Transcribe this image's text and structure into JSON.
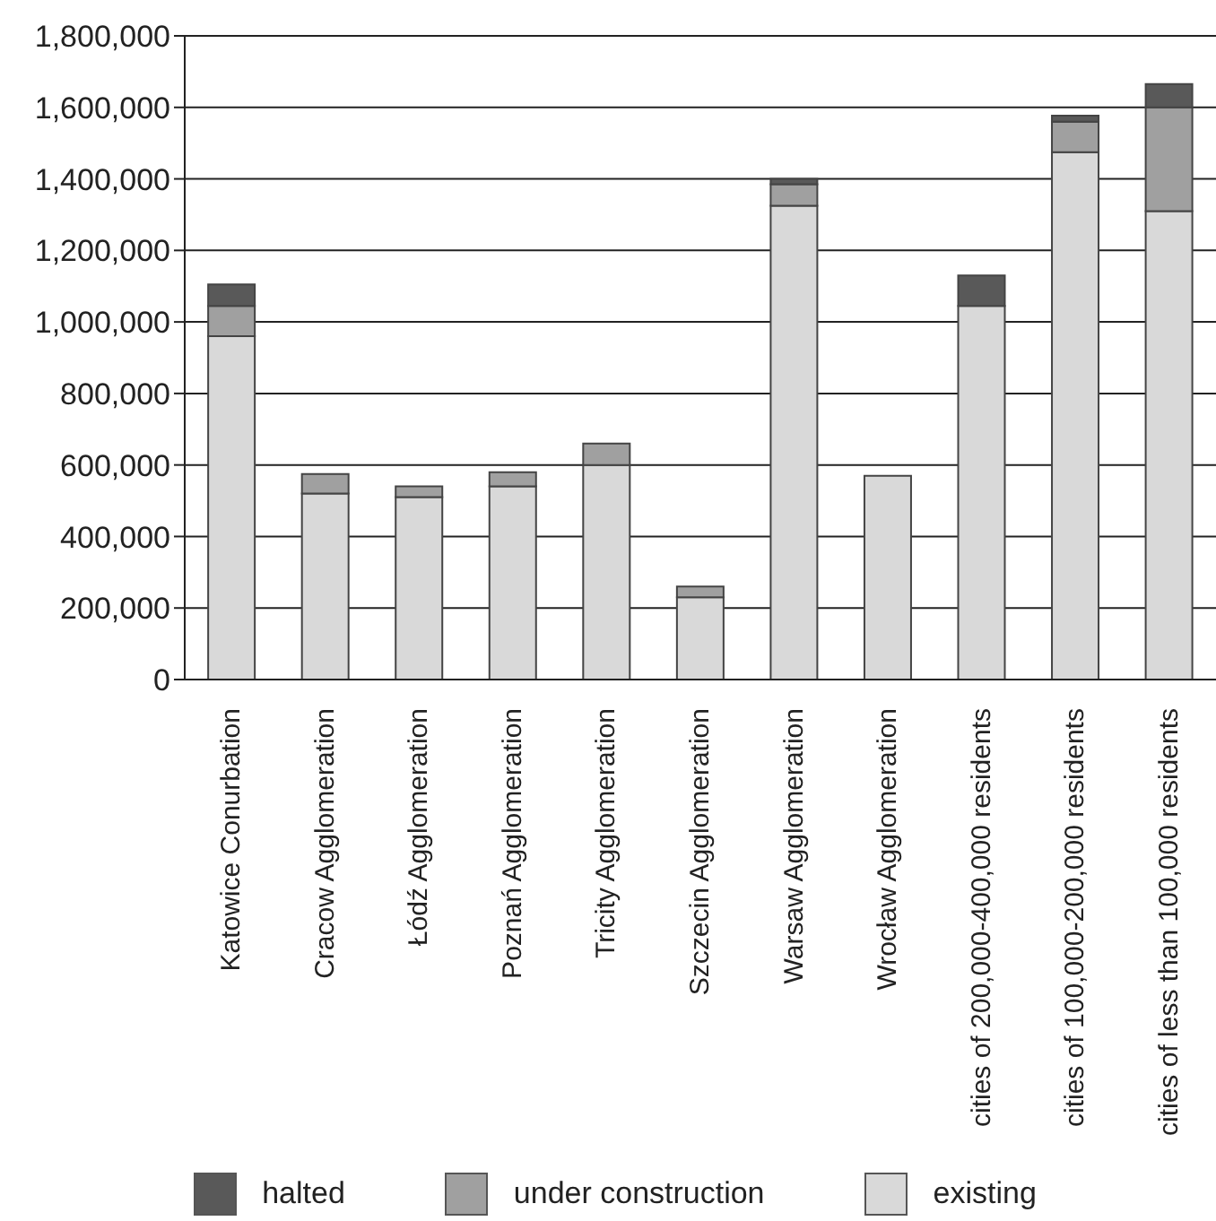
{
  "chart_data": {
    "type": "bar",
    "stacked": true,
    "categories": [
      "Katowice Conurbation",
      "Cracow Agglomeration",
      "Łódź Agglomeration",
      "Poznań Agglomeration",
      "Tricity Agglomeration",
      "Szczecin Agglomeration",
      "Warsaw Agglomeration",
      "Wrocław Agglomeration",
      "cities of 200,000-400,000 residents",
      "cities of 100,000-200,000 residents",
      "cities of less than 100,000 residents"
    ],
    "series": [
      {
        "name": "existing",
        "color": "#d9d9d9",
        "values": [
          960000,
          520000,
          510000,
          540000,
          600000,
          230000,
          1325000,
          570000,
          1045000,
          1475000,
          1310000
        ]
      },
      {
        "name": "under construction",
        "color": "#a0a0a0",
        "values": [
          85000,
          55000,
          30000,
          40000,
          60000,
          30000,
          60000,
          null,
          null,
          85000,
          290000
        ]
      },
      {
        "name": "halted",
        "color": "#595959",
        "values": [
          60000,
          null,
          null,
          null,
          null,
          null,
          15000,
          null,
          85000,
          17000,
          65000
        ]
      }
    ],
    "ylim": [
      0,
      1800000
    ],
    "yticks": [
      0,
      {
        "value": 200000,
        "label": "200,000"
      },
      {
        "value": 400000,
        "label": "400,000"
      },
      {
        "value": 600000,
        "label": "600,000"
      },
      {
        "value": 800000,
        "label": "800,000"
      },
      {
        "value": 1000000,
        "label": "1,000,000"
      },
      {
        "value": 1200000,
        "label": "1,200,000"
      },
      {
        "value": 1400000,
        "label": "1,400,000"
      },
      {
        "value": 1600000,
        "label": "1,600,000"
      },
      {
        "value": 1800000,
        "label": "1,800,000"
      }
    ],
    "grid": "y",
    "legend": "bottom"
  }
}
